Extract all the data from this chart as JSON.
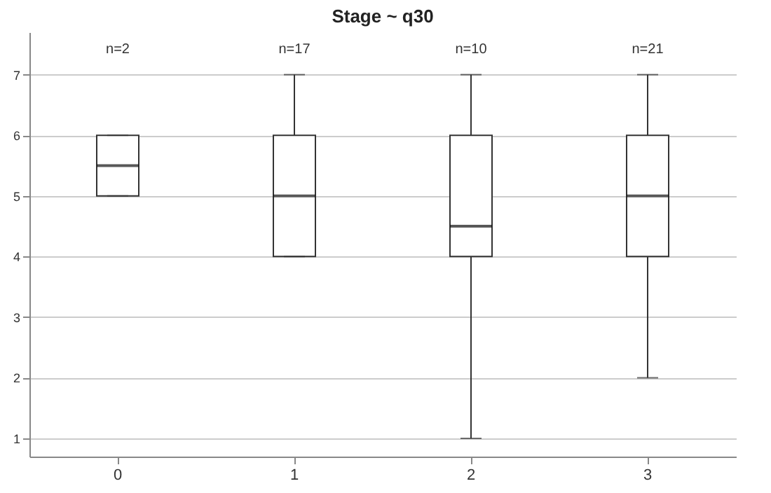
{
  "chart_data": {
    "type": "box",
    "title": "Stage ~ q30",
    "categories": [
      "0",
      "1",
      "2",
      "3"
    ],
    "boxes": [
      {
        "low": 5,
        "q1": 5,
        "median": 5.5,
        "q3": 6,
        "high": 6
      },
      {
        "low": 4,
        "q1": 4,
        "median": 5,
        "q3": 6,
        "high": 7
      },
      {
        "low": 1,
        "q1": 4,
        "median": 4.5,
        "q3": 6,
        "high": 7
      },
      {
        "low": 2,
        "q1": 4,
        "median": 5,
        "q3": 6,
        "high": 7
      }
    ],
    "color": "#333333",
    "ylim": [
      0.7,
      7.7
    ],
    "yticks": [
      1,
      2,
      3,
      4,
      5,
      6,
      7
    ],
    "grid": "y",
    "annotations": [
      "n=2",
      "n=17",
      "n=10",
      "n=21"
    ]
  }
}
